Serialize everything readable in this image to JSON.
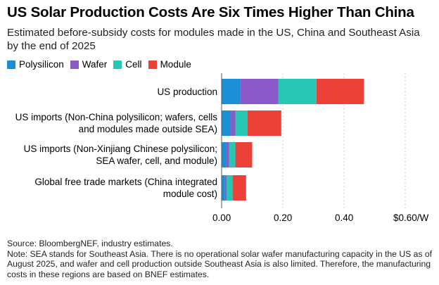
{
  "title": "US Solar Production Costs Are Six Times Higher Than China",
  "subtitle": "Estimated before-subsidy costs for modules made in the US, China and Southeast Asia by the end of 2025",
  "colors": {
    "Polysilicon": "#1a8fd6",
    "Wafer": "#8a5ac8",
    "Cell": "#27c7b4",
    "Module": "#ec4139",
    "gridline": "#cccccc"
  },
  "chart_data": {
    "type": "bar",
    "orientation": "horizontal",
    "stacked": true,
    "title": "US Solar Production Costs Are Six Times Higher Than China",
    "xlabel": "",
    "ylabel": "",
    "xlim": [
      0,
      0.6
    ],
    "ticks": [
      0,
      0.2,
      0.4,
      0.6
    ],
    "tick_labels": [
      "0.00",
      "0.20",
      "0.40",
      "$0.60/W"
    ],
    "categories": [
      "US production",
      "US imports (Non-China polysilicon; wafers, cells and modules made outside SEA)",
      "US imports (Non-Xinjiang Chinese polysilicon; SEA wafer, cell, and module)",
      "Global free trade markets (China integrated module cost)"
    ],
    "series": [
      {
        "name": "Polysilicon",
        "values": [
          0.06,
          0.03,
          0.015,
          0.01
        ]
      },
      {
        "name": "Wafer",
        "values": [
          0.125,
          0.015,
          0.01,
          0.006
        ]
      },
      {
        "name": "Cell",
        "values": [
          0.125,
          0.04,
          0.02,
          0.02
        ]
      },
      {
        "name": "Module",
        "values": [
          0.155,
          0.11,
          0.055,
          0.044
        ]
      }
    ],
    "legend_position": "top-left"
  },
  "footnote": {
    "source": "Source: BloombergNEF, industry estimates.",
    "note": "Note: SEA stands for Southeast Asia. There is no operational solar wafer manufacturing capacity in the US as of August 2025, and wafer and cell production outside Southeast Asia is also limited. Therefore, the manufacturing costs in these regions are based on BNEF estimates."
  }
}
